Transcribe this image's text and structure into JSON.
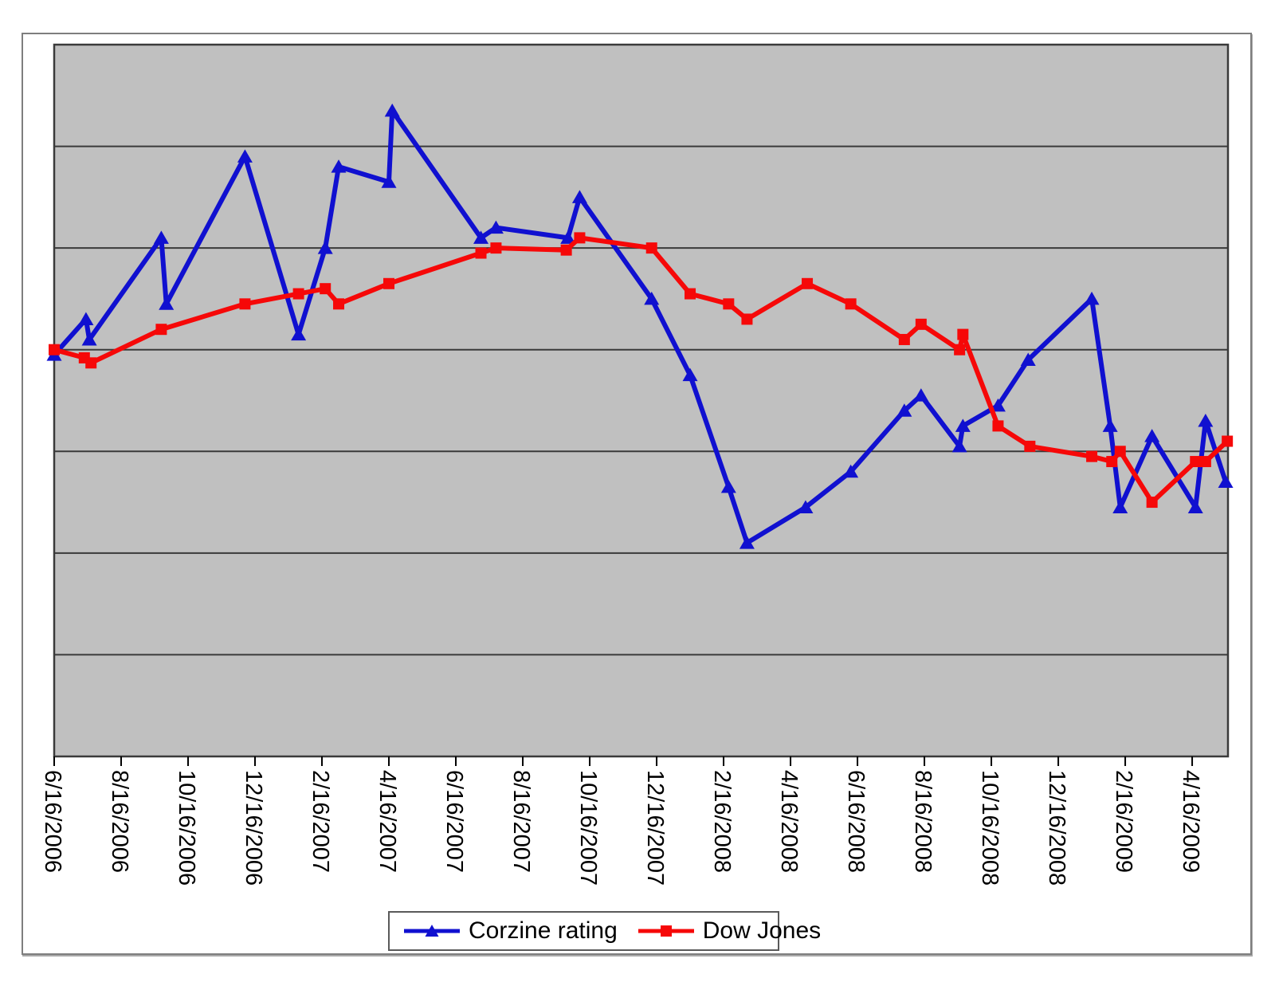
{
  "chart_data": {
    "type": "line",
    "title": "",
    "xlabel": "",
    "ylabel": "",
    "x_unit": "months after 6/16/2006 (x tick spacing = 2 months)",
    "x_tick_labels": [
      "6/16/2006",
      "8/16/2006",
      "10/16/2006",
      "12/16/2006",
      "2/16/2007",
      "4/16/2007",
      "6/16/2007",
      "8/16/2007",
      "10/16/2007",
      "12/16/2007",
      "2/16/2008",
      "4/16/2008",
      "6/16/2008",
      "8/16/2008",
      "10/16/2008",
      "12/16/2008",
      "2/16/2009",
      "4/16/2009"
    ],
    "xlim_months": [
      0,
      35.07
    ],
    "y_axis_note": "y axis has no labels; values estimated in gridline units, 0 = plot bottom, 7 = plot top",
    "ylim": [
      0,
      7
    ],
    "gridlines_at": [
      1,
      2,
      3,
      4,
      5,
      6
    ],
    "grid_on": true,
    "legend_position": "bottom-center",
    "plot_background": "#c0c0c0",
    "gridline_color": "#3a3a3a",
    "axis_border_color": "#3a3a3a",
    "series": [
      {
        "name": "Corzine rating",
        "color": "#1010d0",
        "marker": "triangle-up",
        "points": [
          [
            0,
            3.95
          ],
          [
            0.95,
            4.3
          ],
          [
            1.05,
            4.1
          ],
          [
            3.2,
            5.1
          ],
          [
            3.35,
            4.45
          ],
          [
            5.7,
            5.9
          ],
          [
            7.3,
            4.15
          ],
          [
            8.1,
            5.0
          ],
          [
            8.5,
            5.8
          ],
          [
            10.0,
            5.65
          ],
          [
            10.1,
            6.35
          ],
          [
            12.75,
            5.1
          ],
          [
            13.2,
            5.2
          ],
          [
            15.35,
            5.1
          ],
          [
            15.7,
            5.5
          ],
          [
            17.85,
            4.5
          ],
          [
            19.0,
            3.75
          ],
          [
            20.15,
            2.65
          ],
          [
            20.7,
            2.1
          ],
          [
            22.45,
            2.45
          ],
          [
            23.8,
            2.8
          ],
          [
            25.4,
            3.4
          ],
          [
            25.9,
            3.55
          ],
          [
            27.05,
            3.05
          ],
          [
            27.15,
            3.25
          ],
          [
            28.2,
            3.45
          ],
          [
            29.1,
            3.9
          ],
          [
            31.0,
            4.5
          ],
          [
            31.55,
            3.25
          ],
          [
            31.85,
            2.45
          ],
          [
            32.8,
            3.15
          ],
          [
            34.1,
            2.45
          ],
          [
            34.4,
            3.3
          ],
          [
            35.0,
            2.7
          ]
        ]
      },
      {
        "name": "Dow Jones",
        "color": "#f60808",
        "marker": "square",
        "points": [
          [
            0,
            4.0
          ],
          [
            0.9,
            3.92
          ],
          [
            1.1,
            3.87
          ],
          [
            3.2,
            4.2
          ],
          [
            5.7,
            4.45
          ],
          [
            7.3,
            4.55
          ],
          [
            8.1,
            4.6
          ],
          [
            8.5,
            4.45
          ],
          [
            10.0,
            4.65
          ],
          [
            12.75,
            4.95
          ],
          [
            13.2,
            5.0
          ],
          [
            15.3,
            4.98
          ],
          [
            15.7,
            5.1
          ],
          [
            17.85,
            5.0
          ],
          [
            19.0,
            4.55
          ],
          [
            20.15,
            4.45
          ],
          [
            20.7,
            4.3
          ],
          [
            22.5,
            4.65
          ],
          [
            23.8,
            4.45
          ],
          [
            25.4,
            4.1
          ],
          [
            25.9,
            4.25
          ],
          [
            27.05,
            4.0
          ],
          [
            27.15,
            4.15
          ],
          [
            28.2,
            3.25
          ],
          [
            29.15,
            3.05
          ],
          [
            31.0,
            2.95
          ],
          [
            31.6,
            2.9
          ],
          [
            31.85,
            3.0
          ],
          [
            32.8,
            2.5
          ],
          [
            34.1,
            2.9
          ],
          [
            34.4,
            2.9
          ],
          [
            35.05,
            3.1
          ]
        ]
      }
    ]
  }
}
